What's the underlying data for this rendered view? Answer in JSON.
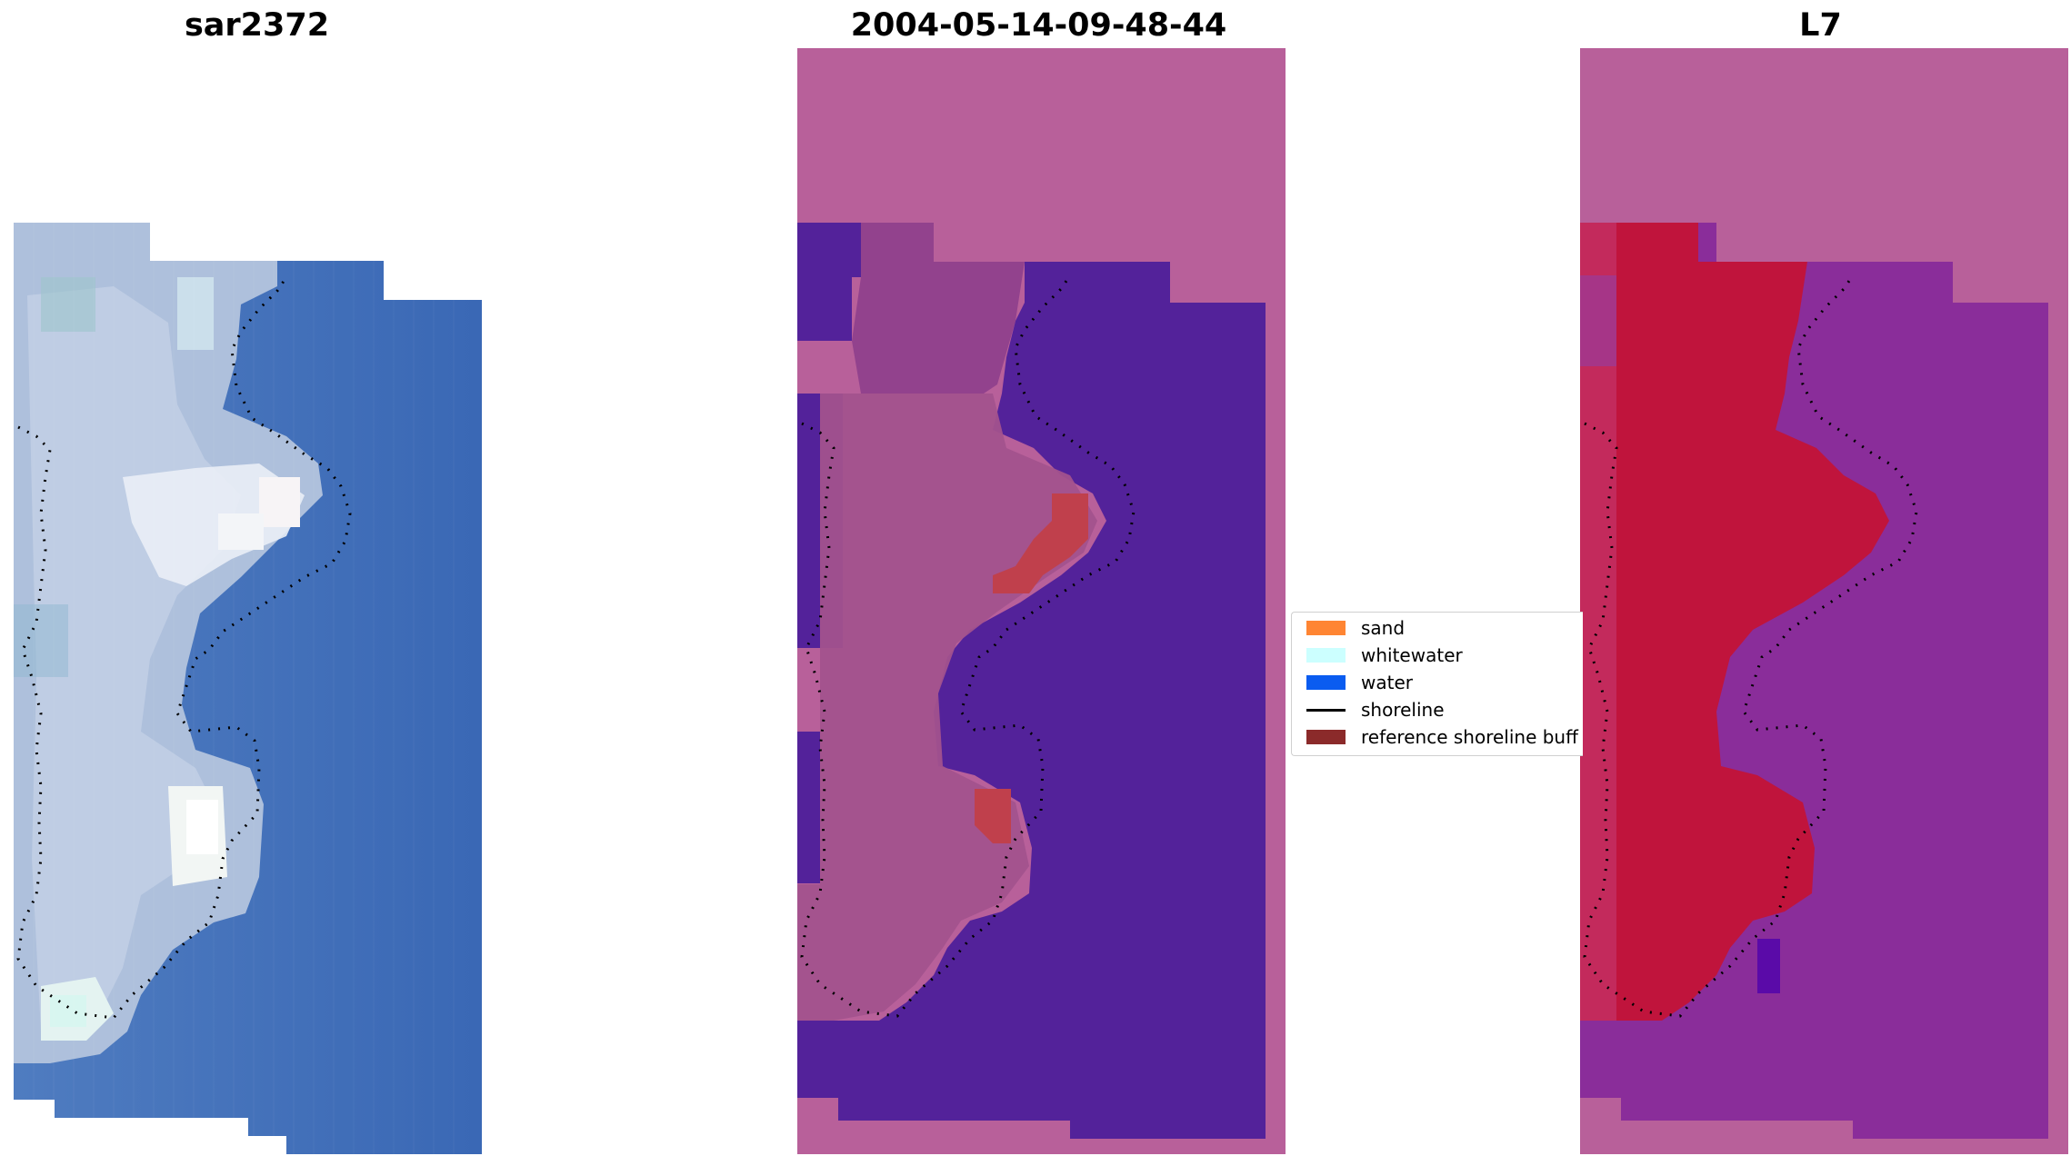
{
  "panels": {
    "left": {
      "title": "sar2372"
    },
    "middle": {
      "title": "2004-05-14-09-48-44"
    },
    "right": {
      "title": "L7"
    }
  },
  "legend": {
    "items": [
      {
        "label": "sand",
        "color": "#ff8533",
        "kind": "patch"
      },
      {
        "label": "whitewater",
        "color": "#ccffff",
        "kind": "patch"
      },
      {
        "label": "water",
        "color": "#0a5cf0",
        "kind": "patch"
      },
      {
        "label": "shoreline",
        "color": "#000000",
        "kind": "line"
      },
      {
        "label": "reference shoreline buff",
        "color": "#8b2a2a",
        "kind": "patch"
      }
    ]
  },
  "colors": {
    "sea_rgb": "#3f6db8",
    "land_rgb": "#b9c7dc",
    "surf_rgb": "#eef3f6",
    "classified_water": "#53229a",
    "classified_land": "#b8609a",
    "classified_buffer": "#c0404c",
    "index_water": "#8a2d9a",
    "index_land": "#c0143c",
    "nodata_mask": "#b8609a"
  }
}
